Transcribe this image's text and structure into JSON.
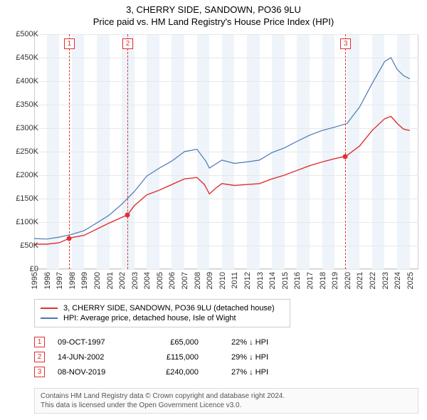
{
  "title": "3, CHERRY SIDE, SANDOWN, PO36 9LU",
  "subtitle": "Price paid vs. HM Land Registry's House Price Index (HPI)",
  "chart": {
    "type": "line",
    "background_color": "#ffffff",
    "band_color": "#eef4fa",
    "grid_color": "#e8e8e8",
    "border_color": "#cccccc",
    "x_start": 1995,
    "x_end": 2025.7,
    "x_ticks": [
      1995,
      1996,
      1997,
      1998,
      1999,
      2000,
      2001,
      2002,
      2003,
      2004,
      2005,
      2006,
      2007,
      2008,
      2009,
      2010,
      2011,
      2012,
      2013,
      2014,
      2015,
      2016,
      2017,
      2018,
      2019,
      2020,
      2021,
      2022,
      2023,
      2024,
      2025
    ],
    "y_min": 0,
    "y_max": 500000,
    "y_ticks": [
      0,
      50000,
      100000,
      150000,
      200000,
      250000,
      300000,
      350000,
      400000,
      450000,
      500000
    ],
    "y_tick_labels": [
      "£0",
      "£50K",
      "£100K",
      "£150K",
      "£200K",
      "£250K",
      "£300K",
      "£350K",
      "£400K",
      "£450K",
      "£500K"
    ],
    "label_fontsize": 11,
    "label_color": "#333333",
    "series": [
      {
        "name": "price_paid",
        "label": "3, CHERRY SIDE, SANDOWN, PO36 9LU (detached house)",
        "color": "#e03030",
        "line_width": 1.4,
        "data": [
          [
            1995,
            53000
          ],
          [
            1996,
            53000
          ],
          [
            1997,
            56000
          ],
          [
            1997.77,
            65000
          ],
          [
            1998,
            67000
          ],
          [
            1999,
            72000
          ],
          [
            2000,
            85000
          ],
          [
            2001,
            98000
          ],
          [
            2002,
            110000
          ],
          [
            2002.45,
            115000
          ],
          [
            2003,
            135000
          ],
          [
            2004,
            158000
          ],
          [
            2005,
            168000
          ],
          [
            2006,
            180000
          ],
          [
            2007,
            192000
          ],
          [
            2008,
            195000
          ],
          [
            2008.6,
            180000
          ],
          [
            2009,
            160000
          ],
          [
            2009.5,
            172000
          ],
          [
            2010,
            182000
          ],
          [
            2011,
            178000
          ],
          [
            2012,
            180000
          ],
          [
            2013,
            182000
          ],
          [
            2014,
            192000
          ],
          [
            2015,
            200000
          ],
          [
            2016,
            210000
          ],
          [
            2017,
            220000
          ],
          [
            2018,
            228000
          ],
          [
            2019,
            235000
          ],
          [
            2019.85,
            240000
          ],
          [
            2020,
            242000
          ],
          [
            2021,
            262000
          ],
          [
            2022,
            295000
          ],
          [
            2023,
            320000
          ],
          [
            2023.5,
            325000
          ],
          [
            2024,
            310000
          ],
          [
            2024.5,
            298000
          ],
          [
            2025,
            295000
          ]
        ]
      },
      {
        "name": "hpi",
        "label": "HPI: Average price, detached house, Isle of Wight",
        "color": "#4a78b5",
        "line_width": 1.2,
        "data": [
          [
            1995,
            65000
          ],
          [
            1996,
            64000
          ],
          [
            1997,
            68000
          ],
          [
            1998,
            74000
          ],
          [
            1999,
            82000
          ],
          [
            2000,
            98000
          ],
          [
            2001,
            115000
          ],
          [
            2002,
            138000
          ],
          [
            2003,
            165000
          ],
          [
            2004,
            198000
          ],
          [
            2005,
            215000
          ],
          [
            2006,
            230000
          ],
          [
            2007,
            250000
          ],
          [
            2008,
            255000
          ],
          [
            2008.7,
            230000
          ],
          [
            2009,
            215000
          ],
          [
            2010,
            232000
          ],
          [
            2011,
            225000
          ],
          [
            2012,
            228000
          ],
          [
            2013,
            232000
          ],
          [
            2014,
            248000
          ],
          [
            2015,
            258000
          ],
          [
            2016,
            272000
          ],
          [
            2017,
            285000
          ],
          [
            2018,
            295000
          ],
          [
            2019,
            302000
          ],
          [
            2020,
            310000
          ],
          [
            2021,
            345000
          ],
          [
            2022,
            395000
          ],
          [
            2023,
            442000
          ],
          [
            2023.5,
            450000
          ],
          [
            2024,
            425000
          ],
          [
            2024.5,
            412000
          ],
          [
            2025,
            405000
          ]
        ]
      }
    ],
    "markers": [
      {
        "id": 1,
        "x": 1997.77,
        "y": 65000
      },
      {
        "id": 2,
        "x": 2002.45,
        "y": 115000
      },
      {
        "id": 3,
        "x": 2019.85,
        "y": 240000
      }
    ],
    "marker_color": "#e03030",
    "marker_box_bg": "#ffffff"
  },
  "legend": {
    "border_color": "#cccccc",
    "fontsize": 11
  },
  "events": [
    {
      "id": 1,
      "date": "09-OCT-1997",
      "price": "£65,000",
      "delta": "22% ↓ HPI"
    },
    {
      "id": 2,
      "date": "14-JUN-2002",
      "price": "£115,000",
      "delta": "29% ↓ HPI"
    },
    {
      "id": 3,
      "date": "08-NOV-2019",
      "price": "£240,000",
      "delta": "27% ↓ HPI"
    }
  ],
  "footer": {
    "line1": "Contains HM Land Registry data © Crown copyright and database right 2024.",
    "line2": "This data is licensed under the Open Government Licence v3.0.",
    "bg": "#fafafa",
    "border": "#dddddd",
    "color": "#555555"
  }
}
